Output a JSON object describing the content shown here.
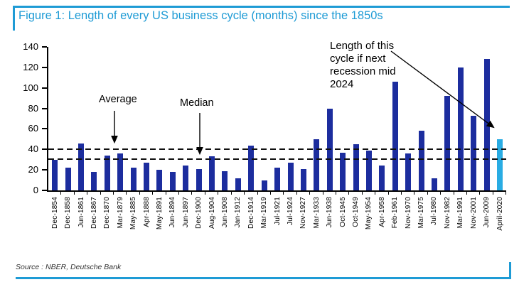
{
  "figure": {
    "title": "Figure 1: Length of every US business cycle (months) since the 1850s",
    "source": "Source : NBER, Deutsche Bank"
  },
  "colors": {
    "accent_blue": "#1e9bd5",
    "bar_navy": "#1c2d9e",
    "bar_cyan": "#29ace3",
    "dashed_line": "#101010"
  },
  "annotations": {
    "average_label": "Average",
    "median_label": "Median",
    "cycle_note": "Length of this cycle if next recession mid 2024"
  },
  "chart_data": {
    "type": "bar",
    "title": "Length of every US business cycle (months) since the 1850s",
    "xlabel": "",
    "ylabel": "",
    "ylim": [
      0,
      140
    ],
    "ytick_step": 20,
    "grid": false,
    "legend": "none",
    "categories": [
      "Dec-1854",
      "Dec-1858",
      "Jun-1861",
      "Dec-1867",
      "Dec-1870",
      "Mar-1879",
      "May-1885",
      "Apr-1888",
      "May-1891",
      "Jun-1894",
      "Jun-1897",
      "Dec-1900",
      "Aug-1904",
      "Jun-1908",
      "Jan-1912",
      "Dec-1914",
      "Mar-1919",
      "Jul-1921",
      "Jul-1924",
      "Nov-1927",
      "Mar-1933",
      "Jun-1938",
      "Oct-1945",
      "Oct-1949",
      "May-1954",
      "Apr-1958",
      "Feb-1961",
      "Nov-1970",
      "Mar-1975",
      "Jul-1980",
      "Nov-1982",
      "Mar-1991",
      "Nov-2001",
      "Jun-2009",
      "April-2020"
    ],
    "values": [
      30,
      22,
      46,
      18,
      34,
      36,
      22,
      27,
      20,
      18,
      24,
      21,
      33,
      19,
      12,
      44,
      10,
      22,
      27,
      21,
      50,
      80,
      37,
      45,
      39,
      24,
      106,
      36,
      58,
      12,
      92,
      120,
      73,
      128,
      50
    ],
    "highlight_index": 34,
    "highlight_note": "Length of this cycle if next recession mid 2024",
    "reference_lines": [
      {
        "label": "Average",
        "value": 41
      },
      {
        "label": "Median",
        "value": 31.5
      }
    ]
  }
}
